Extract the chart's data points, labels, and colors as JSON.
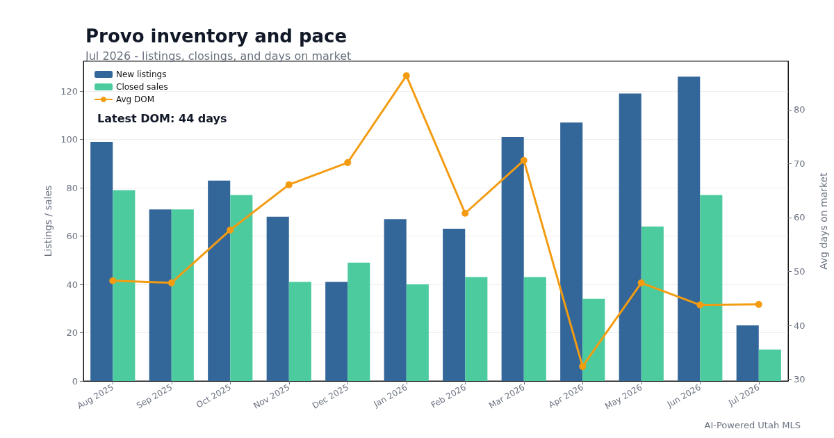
{
  "chart_data": {
    "type": "bar",
    "title": "Provo inventory and pace",
    "subtitle": "Jul 2026 - listings, closings, and days on market",
    "categories": [
      "Aug 2025",
      "Sep 2025",
      "Oct 2025",
      "Nov 2025",
      "Dec 2025",
      "Jan 2026",
      "Feb 2026",
      "Mar 2026",
      "Apr 2026",
      "May 2026",
      "Jun 2026",
      "Jul 2026"
    ],
    "series": [
      {
        "name": "New listings",
        "color": "#336699",
        "values": [
          99,
          71,
          83,
          68,
          41,
          67,
          63,
          101,
          107,
          119,
          126,
          23
        ]
      },
      {
        "name": "Closed sales",
        "color": "#4ccb9f",
        "values": [
          79,
          71,
          77,
          41,
          49,
          40,
          43,
          43,
          34,
          64,
          77,
          13
        ]
      },
      {
        "name": "Avg DOM",
        "type": "line",
        "axis": "y2",
        "color": "#f39c12",
        "values": [
          48.3,
          47.9,
          57.7,
          66.1,
          70.2,
          86.3,
          60.8,
          70.6,
          32.4,
          47.9,
          43.8,
          43.9
        ]
      }
    ],
    "ylabel": "Listings / sales",
    "y2label": "Avg days on market",
    "ylim": [
      0,
      132.4
    ],
    "yticks": [
      0,
      20,
      40,
      60,
      80,
      100,
      120
    ],
    "y2lim": [
      29.7,
      89
    ],
    "y2ticks": [
      30,
      40,
      50,
      60,
      70,
      80
    ],
    "annotations": [
      "Latest DOM: 44 days",
      "AI-Powered Utah MLS"
    ],
    "grid": "y",
    "legend": "top left",
    "marker": "circle"
  }
}
